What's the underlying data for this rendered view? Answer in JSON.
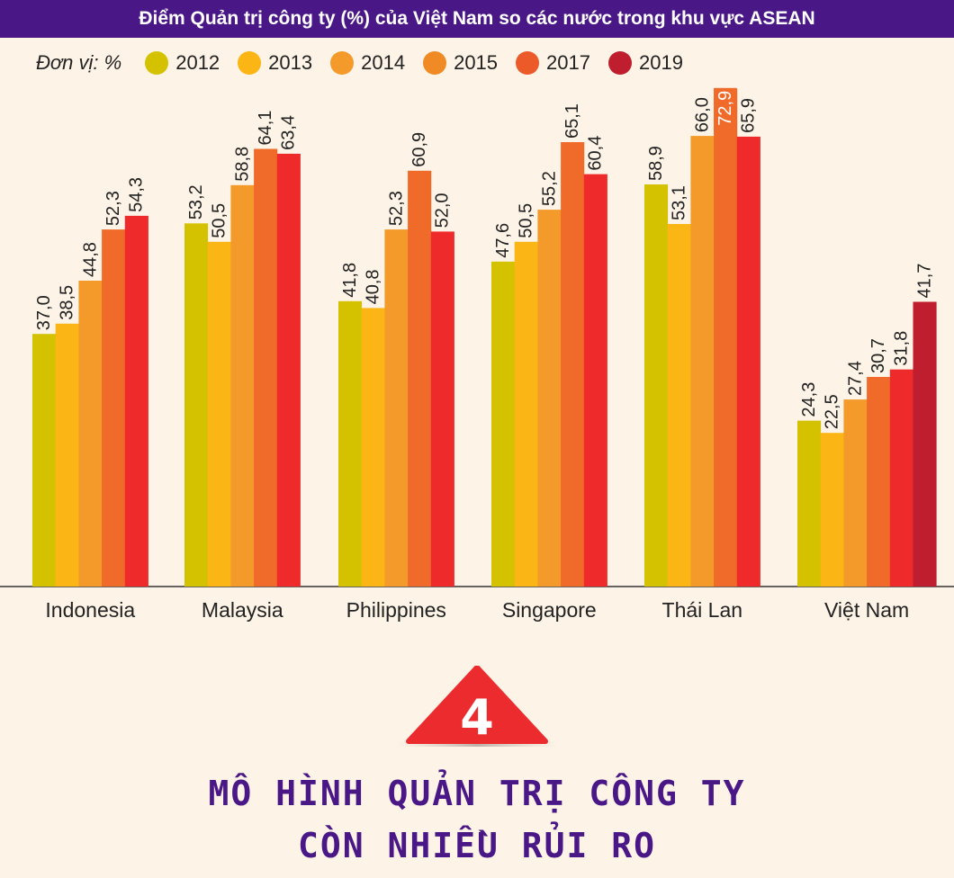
{
  "chart_data": {
    "type": "bar",
    "title": "Điểm Quản trị công ty (%) của Việt Nam so các nước trong khu vực ASEAN",
    "unit_label": "Đơn vị: %",
    "categories": [
      "Indonesia",
      "Malaysia",
      "Philippines",
      "Singapore",
      "Thái Lan",
      "Việt Nam"
    ],
    "series": [
      {
        "name": "2012",
        "color": "#d4c200",
        "values": [
          37.0,
          53.2,
          41.8,
          47.6,
          58.9,
          24.3
        ],
        "labels": [
          "37,0",
          "53,2",
          "41,8",
          "47,6",
          "58,9",
          "24,3"
        ]
      },
      {
        "name": "2013",
        "color": "#fbb616",
        "values": [
          38.5,
          50.5,
          40.8,
          50.5,
          53.1,
          22.5
        ],
        "labels": [
          "38,5",
          "50,5",
          "40,8",
          "50,5",
          "53,1",
          "22,5"
        ]
      },
      {
        "name": "2014",
        "color": "#f39a2a",
        "values": [
          44.8,
          58.8,
          52.3,
          55.2,
          66.0,
          27.4
        ],
        "labels": [
          "44,8",
          "58,8",
          "52,3",
          "55,2",
          "66,0",
          "27,4"
        ]
      },
      {
        "name": "2015",
        "color": "#f08a24",
        "values": [
          52.3,
          64.1,
          60.9,
          65.1,
          72.9,
          30.7
        ],
        "labels": [
          "52,3",
          "64,1",
          "60,9",
          "65,1",
          "72,9",
          "30,7"
        ]
      },
      {
        "name": "2017",
        "color": "#ec5a2a",
        "values": [
          54.3,
          63.4,
          52.0,
          60.4,
          65.9,
          31.8
        ],
        "labels": [
          "54,3",
          "63,4",
          "52,0",
          "60,4",
          "65,9",
          "31,8"
        ]
      },
      {
        "name": "2019",
        "color": "#be1e2d",
        "values": [
          null,
          null,
          null,
          null,
          null,
          41.7
        ],
        "labels": [
          "",
          "",
          "",
          "",
          "",
          "41,7"
        ]
      }
    ],
    "bar_colors": [
      "#d4c200",
      "#fbb616",
      "#f39a2a",
      "#f06a2a",
      "#ee2a2a",
      "#be1e2d"
    ],
    "ylim": [
      0,
      75
    ],
    "grid": false,
    "legend_position": "top-left"
  },
  "section": {
    "number": "4",
    "heading_line1": "MÔ HÌNH QUẢN TRỊ CÔNG TY",
    "heading_line2": "CÒN NHIỀU RỦI RO"
  }
}
